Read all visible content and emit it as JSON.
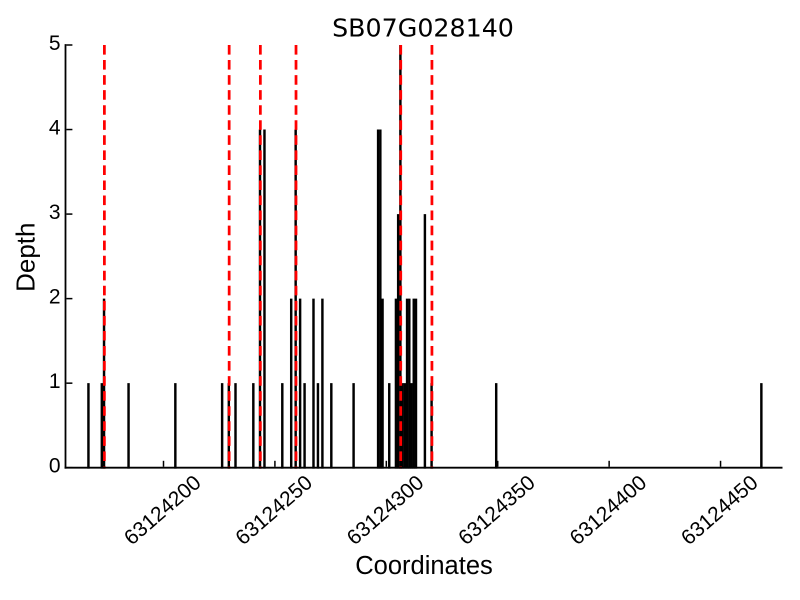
{
  "chart_data": {
    "type": "bar",
    "title": "SB07G028140",
    "xlabel": "Coordinates",
    "ylabel": "Depth",
    "xlim": [
      63124156,
      63124478
    ],
    "ylim": [
      0,
      5
    ],
    "x_ticks": [
      63124200,
      63124250,
      63124300,
      63124350,
      63124400,
      63124450
    ],
    "y_ticks": [
      0,
      1,
      2,
      3,
      4,
      5
    ],
    "grid": false,
    "legend": false,
    "series": [
      {
        "name": "read-depth-bars",
        "type": "vertical-bars",
        "color": "#000000",
        "points": [
          {
            "x": 63124166,
            "depth": 1
          },
          {
            "x": 63124172,
            "depth": 1
          },
          {
            "x": 63124173,
            "depth": 2
          },
          {
            "x": 63124184,
            "depth": 1
          },
          {
            "x": 63124205,
            "depth": 1
          },
          {
            "x": 63124226,
            "depth": 1
          },
          {
            "x": 63124229,
            "depth": 1
          },
          {
            "x": 63124232,
            "depth": 1
          },
          {
            "x": 63124240,
            "depth": 1
          },
          {
            "x": 63124243,
            "depth": 4
          },
          {
            "x": 63124245,
            "depth": 4
          },
          {
            "x": 63124253,
            "depth": 1
          },
          {
            "x": 63124257,
            "depth": 2
          },
          {
            "x": 63124259,
            "depth": 4
          },
          {
            "x": 63124261,
            "depth": 2
          },
          {
            "x": 63124263,
            "depth": 1
          },
          {
            "x": 63124267,
            "depth": 2
          },
          {
            "x": 63124269,
            "depth": 1
          },
          {
            "x": 63124271,
            "depth": 2
          },
          {
            "x": 63124275,
            "depth": 1
          },
          {
            "x": 63124285,
            "depth": 1
          },
          {
            "x": 63124296,
            "depth": 4
          },
          {
            "x": 63124297,
            "depth": 4
          },
          {
            "x": 63124298,
            "depth": 2
          },
          {
            "x": 63124301,
            "depth": 1
          },
          {
            "x": 63124304,
            "depth": 2
          },
          {
            "x": 63124305,
            "depth": 3
          },
          {
            "x": 63124306,
            "depth": 5
          },
          {
            "x": 63124307,
            "depth": 1
          },
          {
            "x": 63124308,
            "depth": 1
          },
          {
            "x": 63124309,
            "depth": 2
          },
          {
            "x": 63124310,
            "depth": 2
          },
          {
            "x": 63124311,
            "depth": 1
          },
          {
            "x": 63124312,
            "depth": 2
          },
          {
            "x": 63124313,
            "depth": 2
          },
          {
            "x": 63124317,
            "depth": 3
          },
          {
            "x": 63124320,
            "depth": 1
          },
          {
            "x": 63124349,
            "depth": 1
          },
          {
            "x": 63124468,
            "depth": 1
          }
        ]
      },
      {
        "name": "marker-lines",
        "type": "vertical-dashed-lines",
        "color": "#ff0000",
        "positions": [
          63124173,
          63124229,
          63124243,
          63124259,
          63124306,
          63124320
        ]
      }
    ]
  }
}
